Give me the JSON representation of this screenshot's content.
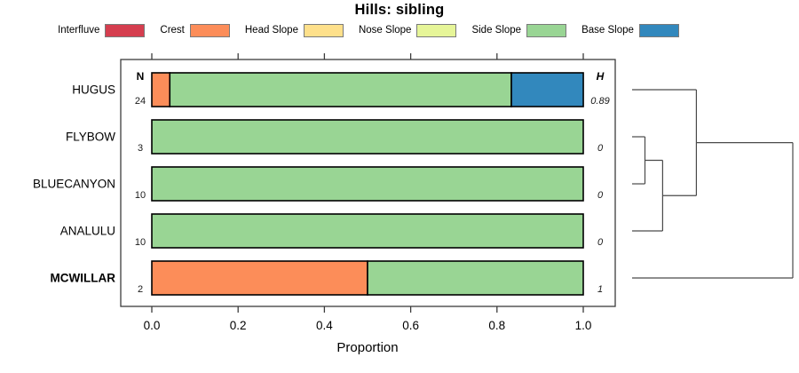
{
  "title": "Hills: sibling",
  "axis": {
    "xlabel": "Proportion",
    "tick_labels": [
      "0.0",
      "0.2",
      "0.4",
      "0.6",
      "0.8",
      "1.0"
    ],
    "tick_values": [
      0,
      0.2,
      0.4,
      0.6,
      0.8,
      1.0
    ]
  },
  "columns": {
    "n_header": "N",
    "h_header": "H"
  },
  "legend": {
    "items": [
      {
        "label": "Interfluve",
        "color": "#D53E4F"
      },
      {
        "label": "Crest",
        "color": "#FC8D59"
      },
      {
        "label": "Head Slope",
        "color": "#FEE08B"
      },
      {
        "label": "Nose Slope",
        "color": "#E6F598"
      },
      {
        "label": "Side Slope",
        "color": "#99D594"
      },
      {
        "label": "Base Slope",
        "color": "#3288BD"
      }
    ]
  },
  "chart_data": {
    "type": "bar",
    "orientation": "horizontal-stacked",
    "title": "Hills: sibling",
    "xlabel": "Proportion",
    "xlim": [
      0,
      1
    ],
    "grid": false,
    "legend_position": "top",
    "classes": [
      "Interfluve",
      "Crest",
      "Head Slope",
      "Nose Slope",
      "Side Slope",
      "Base Slope"
    ],
    "colors": [
      "#D53E4F",
      "#FC8D59",
      "#FEE08B",
      "#E6F598",
      "#99D594",
      "#3288BD"
    ],
    "categories": [
      {
        "name": "HUGUS",
        "n": "24",
        "h": "0.89",
        "emphasis": false,
        "proportions": [
          0,
          0.0417,
          0,
          0,
          0.7917,
          0.1667
        ]
      },
      {
        "name": "FLYBOW",
        "n": "3",
        "h": "0",
        "emphasis": false,
        "proportions": [
          0,
          0,
          0,
          0,
          1,
          0
        ]
      },
      {
        "name": "BLUECANYON",
        "n": "10",
        "h": "0",
        "emphasis": false,
        "proportions": [
          0,
          0,
          0,
          0,
          1,
          0
        ]
      },
      {
        "name": "ANALULU",
        "n": "10",
        "h": "0",
        "emphasis": false,
        "proportions": [
          0,
          0,
          0,
          0,
          1,
          0
        ]
      },
      {
        "name": "MCWILLAR",
        "n": "2",
        "h": "1",
        "emphasis": true,
        "proportions": [
          0,
          0.5,
          0,
          0,
          0.5,
          0
        ]
      }
    ],
    "dendrogram": {
      "height": 1.0,
      "children": [
        {
          "height": 0.4,
          "children": [
            {
              "leaf": "HUGUS"
            },
            {
              "height": 0.19,
              "children": [
                {
                  "height": 0.08,
                  "children": [
                    {
                      "leaf": "FLYBOW"
                    },
                    {
                      "leaf": "BLUECANYON"
                    }
                  ]
                },
                {
                  "leaf": "ANALULU"
                }
              ]
            }
          ]
        },
        {
          "leaf": "MCWILLAR"
        }
      ]
    }
  }
}
